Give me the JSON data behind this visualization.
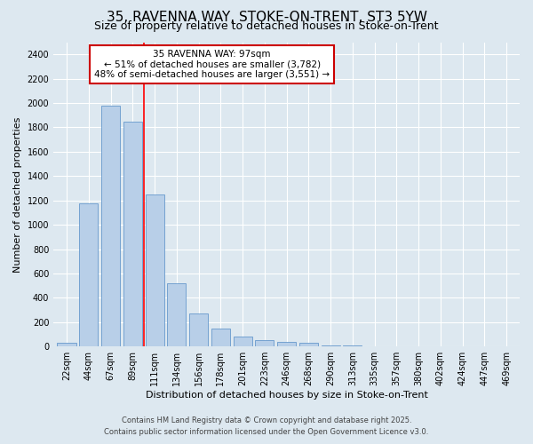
{
  "title_line1": "35, RAVENNA WAY, STOKE-ON-TRENT, ST3 5YW",
  "title_line2": "Size of property relative to detached houses in Stoke-on-Trent",
  "xlabel": "Distribution of detached houses by size in Stoke-on-Trent",
  "ylabel": "Number of detached properties",
  "categories": [
    "22sqm",
    "44sqm",
    "67sqm",
    "89sqm",
    "111sqm",
    "134sqm",
    "156sqm",
    "178sqm",
    "201sqm",
    "223sqm",
    "246sqm",
    "268sqm",
    "290sqm",
    "313sqm",
    "335sqm",
    "357sqm",
    "380sqm",
    "402sqm",
    "424sqm",
    "447sqm",
    "469sqm"
  ],
  "values": [
    30,
    1175,
    1975,
    1850,
    1250,
    520,
    275,
    145,
    85,
    55,
    40,
    30,
    10,
    8,
    5,
    3,
    2,
    1,
    1,
    1,
    1
  ],
  "bar_color": "#b8cfe8",
  "bar_edge_color": "#6699cc",
  "background_color": "#dde8f0",
  "grid_color": "#ffffff",
  "red_line_label": "35 RAVENNA WAY: 97sqm",
  "annotation_line1": "← 51% of detached houses are smaller (3,782)",
  "annotation_line2": "48% of semi-detached houses are larger (3,551) →",
  "annotation_box_color": "#ffffff",
  "annotation_box_edge": "#cc0000",
  "red_line_index": 3.5,
  "ylim": [
    0,
    2500
  ],
  "yticks": [
    0,
    200,
    400,
    600,
    800,
    1000,
    1200,
    1400,
    1600,
    1800,
    2000,
    2200,
    2400
  ],
  "footer_line1": "Contains HM Land Registry data © Crown copyright and database right 2025.",
  "footer_line2": "Contains public sector information licensed under the Open Government Licence v3.0.",
  "title_fontsize": 11,
  "subtitle_fontsize": 9,
  "axis_label_fontsize": 8,
  "tick_fontsize": 7,
  "annotation_fontsize": 7.5,
  "footer_fontsize": 6
}
